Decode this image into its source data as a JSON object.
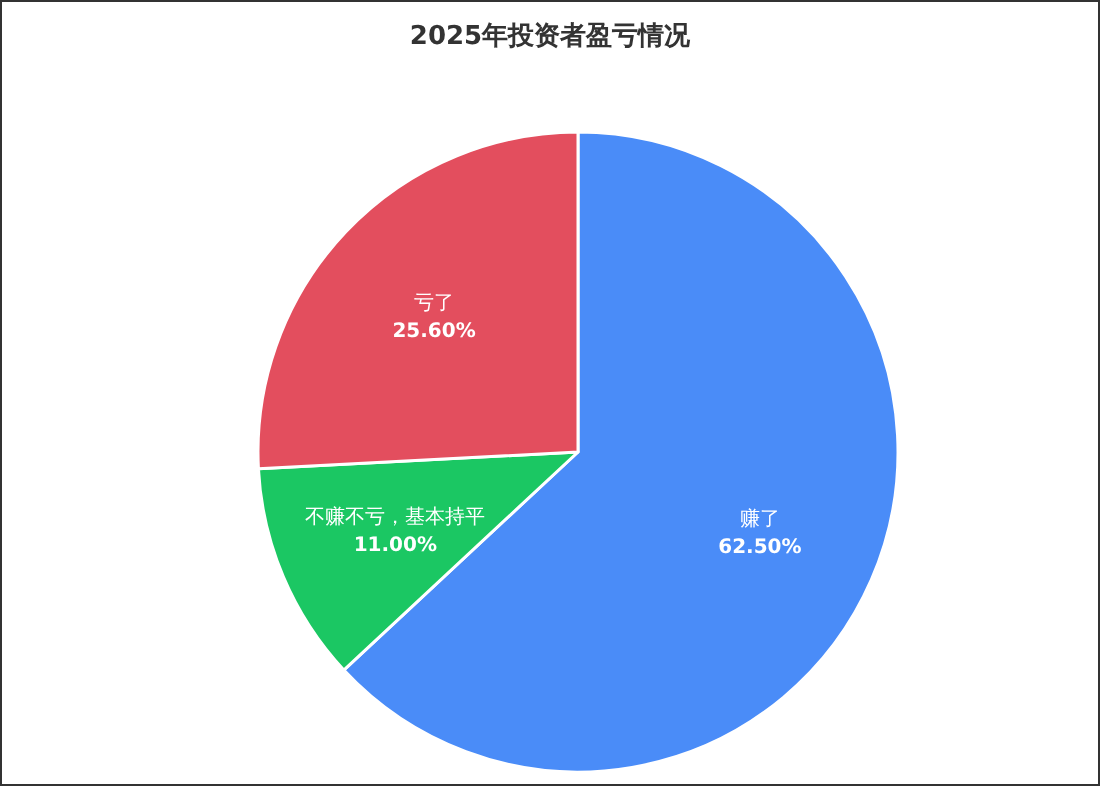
{
  "chart_data": {
    "type": "pie",
    "title": "2025年投资者盈亏情况",
    "categories": [
      "赚了",
      "不赚不亏，基本持平",
      "亏了"
    ],
    "values": [
      62.5,
      11.0,
      25.6
    ],
    "value_labels": [
      "62.50%",
      "11.00%",
      "25.60%"
    ],
    "colors": [
      "#4a8cf8",
      "#1bc763",
      "#e34e5e"
    ]
  }
}
